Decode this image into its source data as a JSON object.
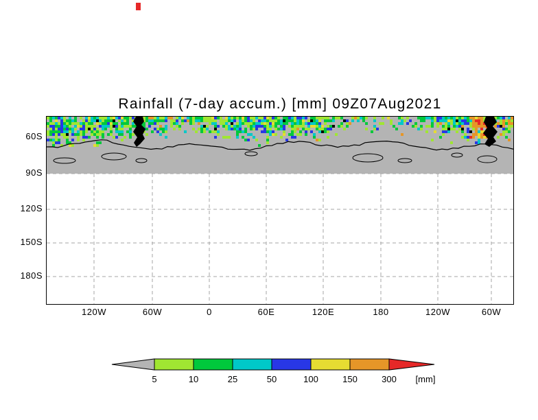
{
  "title": "Rainfall (7-day accum.) [mm] 09Z07Aug2021",
  "artifact_color": "#e62828",
  "map": {
    "seed": 20210807,
    "land_color": "#b4b4b4",
    "grid_color": "#a6a6a6",
    "coast_color": "#000000",
    "y_ticks": [
      "60S",
      "90S",
      "120S",
      "150S",
      "180S"
    ],
    "x_ticks": [
      "120W",
      "60W",
      "0",
      "60E",
      "120E",
      "180",
      "120W",
      "60W"
    ],
    "rain_colors": {
      "light_green": "#a0e632",
      "green": "#00c83c",
      "cyan": "#00c8c8",
      "blue": "#2837e6",
      "yellow": "#e6dc32",
      "orange": "#e69628",
      "red": "#e62828"
    }
  },
  "colorbar": {
    "labels": [
      "5",
      "10",
      "25",
      "50",
      "100",
      "150",
      "300"
    ],
    "unit": "[mm]",
    "colors": [
      "#b4b4b4",
      "#a0e632",
      "#00c83c",
      "#00c8c8",
      "#2837e6",
      "#e6dc32",
      "#e69628",
      "#e62828"
    ]
  },
  "chart_data": {
    "type": "heatmap",
    "title": "Rainfall (7-day accum.) [mm] 09Z07Aug2021",
    "variable": "Rainfall, 7-day accumulation",
    "unit": "mm",
    "valid_time": "09Z07Aug2021",
    "x_tick_labels": [
      "120W",
      "60W",
      "0",
      "60E",
      "120E",
      "180",
      "120W",
      "60W"
    ],
    "y_tick_labels": [
      "60S",
      "90S",
      "120S",
      "150S",
      "180S"
    ],
    "color_levels": [
      5,
      10,
      25,
      50,
      100,
      150,
      300
    ],
    "color_palette": [
      "#b4b4b4",
      "#a0e632",
      "#00c83c",
      "#00c8c8",
      "#2837e6",
      "#e6dc32",
      "#e69628",
      "#e62828"
    ],
    "legend_position": "bottom",
    "grid": true
  }
}
